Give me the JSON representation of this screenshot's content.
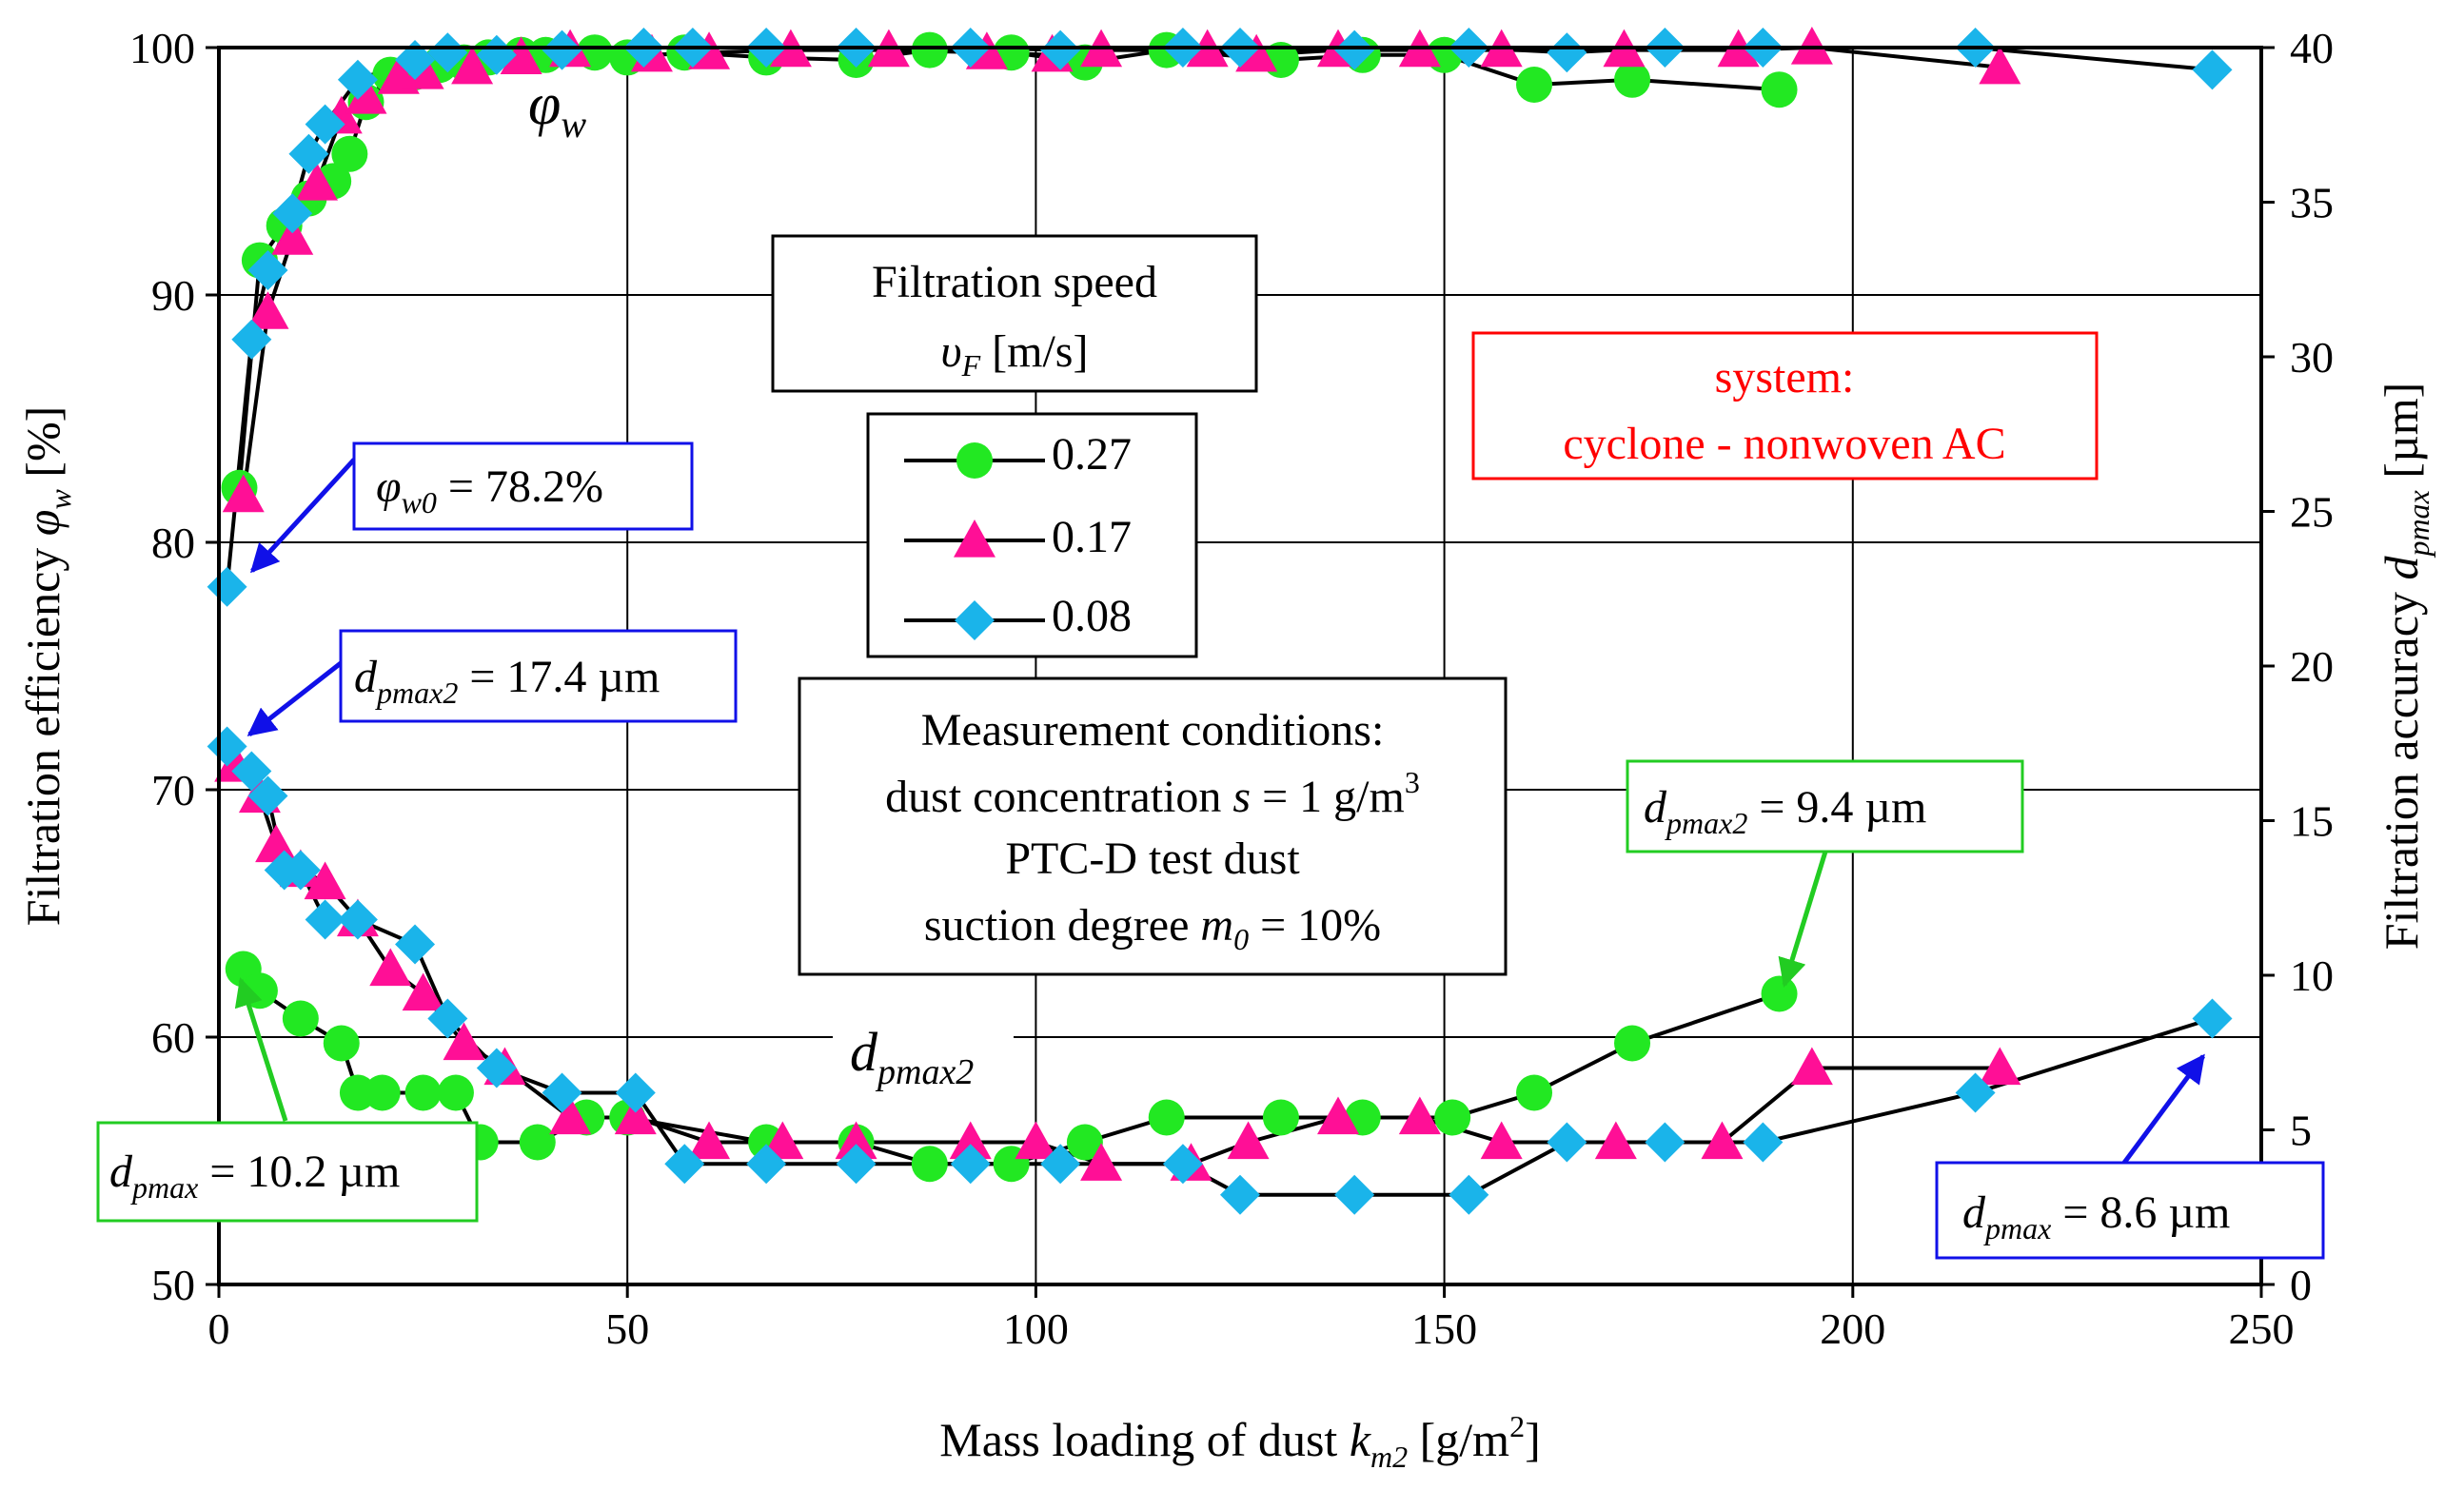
{
  "chart_data": {
    "type": "scatter",
    "xlabel": "Mass loading of dust",
    "xlabel_symbol": "k",
    "xlabel_sub": "m2",
    "xlabel_unit": "[g/m",
    "xlabel_unit_sup": "2",
    "xlabel_unit_end": "]",
    "ylabel_left": "Filtration efficiency",
    "ylabel_left_symbol": "φ",
    "ylabel_left_sub": "w",
    "ylabel_left_unit": "[%]",
    "ylabel_right": "Filtration accuracy",
    "ylabel_right_symbol": "d",
    "ylabel_right_sub": "pmax",
    "ylabel_right_unit": "[µm]",
    "xlim": [
      0,
      250
    ],
    "ylim_left": [
      50,
      100
    ],
    "ylim_right": [
      0,
      40
    ],
    "x_ticks": [
      "0",
      "50",
      "100",
      "150",
      "200",
      "250"
    ],
    "y_left_ticks": [
      "50",
      "60",
      "70",
      "80",
      "90",
      "100"
    ],
    "y_right_ticks": [
      "0",
      "5",
      "10",
      "15",
      "20",
      "25",
      "30",
      "35",
      "40"
    ],
    "grid": true,
    "series": [
      {
        "name": "0.27",
        "marker": "circle",
        "color": "#22e822",
        "axis": "left",
        "curve": "phi_w",
        "points": [
          [
            2.5,
            82.2
          ],
          [
            5,
            91.4
          ],
          [
            8,
            92.8
          ],
          [
            11,
            93.9
          ],
          [
            14,
            94.6
          ],
          [
            16,
            95.7
          ],
          [
            18,
            97.8
          ],
          [
            21,
            98.9
          ],
          [
            24,
            99.0
          ],
          [
            27,
            99.3
          ],
          [
            30,
            99.4
          ],
          [
            33,
            99.6
          ],
          [
            37,
            99.7
          ],
          [
            40,
            99.7
          ],
          [
            46,
            99.8
          ],
          [
            50,
            99.6
          ],
          [
            57,
            99.8
          ],
          [
            67,
            99.6
          ],
          [
            78,
            99.5
          ],
          [
            87,
            99.9
          ],
          [
            97,
            99.8
          ],
          [
            106,
            99.4
          ],
          [
            116,
            99.9
          ],
          [
            130,
            99.5
          ],
          [
            140,
            99.7
          ],
          [
            150,
            99.7
          ],
          [
            161,
            98.5
          ],
          [
            173,
            98.7
          ],
          [
            191,
            98.3
          ]
        ]
      },
      {
        "name": "0.17",
        "marker": "triangle",
        "color": "#ff0f96",
        "axis": "left",
        "curve": "phi_w",
        "points": [
          [
            3,
            81.9
          ],
          [
            6,
            89.3
          ],
          [
            9,
            92.3
          ],
          [
            12,
            94.5
          ],
          [
            15,
            97.2
          ],
          [
            18,
            98.0
          ],
          [
            22,
            98.8
          ],
          [
            25,
            99.0
          ],
          [
            31,
            99.2
          ],
          [
            37,
            99.6
          ],
          [
            43,
            99.9
          ],
          [
            53,
            99.7
          ],
          [
            60,
            99.8
          ],
          [
            70,
            99.9
          ],
          [
            82,
            99.9
          ],
          [
            94,
            99.8
          ],
          [
            102,
            99.7
          ],
          [
            108,
            99.9
          ],
          [
            121,
            99.9
          ],
          [
            127,
            99.7
          ],
          [
            137,
            99.9
          ],
          [
            147,
            99.9
          ],
          [
            157,
            99.9
          ],
          [
            172,
            99.9
          ],
          [
            186,
            99.9
          ],
          [
            195,
            100.0
          ],
          [
            218,
            99.2
          ]
        ]
      },
      {
        "name": "0.08",
        "marker": "diamond",
        "color": "#1ab4ea",
        "axis": "left",
        "curve": "phi_w",
        "points": [
          [
            1,
            78.2
          ],
          [
            4,
            88.2
          ],
          [
            6,
            91.0
          ],
          [
            9,
            93.3
          ],
          [
            11,
            95.7
          ],
          [
            13,
            96.9
          ],
          [
            17,
            98.7
          ],
          [
            24,
            99.5
          ],
          [
            28,
            99.8
          ],
          [
            34,
            99.7
          ],
          [
            42,
            99.9
          ],
          [
            52,
            100.0
          ],
          [
            58,
            100.0
          ],
          [
            67,
            100.0
          ],
          [
            78,
            100.0
          ],
          [
            92,
            100.0
          ],
          [
            103,
            99.9
          ],
          [
            118,
            100.0
          ],
          [
            125,
            100.0
          ],
          [
            139,
            99.9
          ],
          [
            153,
            100.0
          ],
          [
            165,
            99.8
          ],
          [
            177,
            100.0
          ],
          [
            189,
            100.0
          ],
          [
            215,
            100.0
          ],
          [
            244,
            99.1
          ]
        ]
      },
      {
        "name": "0.27",
        "marker": "circle",
        "color": "#22e822",
        "axis": "right",
        "curve": "dpmax",
        "points": [
          [
            3,
            10.2
          ],
          [
            5,
            9.5
          ],
          [
            10,
            8.6
          ],
          [
            15,
            7.8
          ],
          [
            17,
            6.2
          ],
          [
            20,
            6.2
          ],
          [
            25,
            6.2
          ],
          [
            29,
            6.2
          ],
          [
            32,
            4.6
          ],
          [
            39,
            4.6
          ],
          [
            45,
            5.4
          ],
          [
            50,
            5.4
          ],
          [
            67,
            4.6
          ],
          [
            78,
            4.6
          ],
          [
            87,
            3.9
          ],
          [
            97,
            3.9
          ],
          [
            106,
            4.6
          ],
          [
            116,
            5.4
          ],
          [
            130,
            5.4
          ],
          [
            140,
            5.4
          ],
          [
            151,
            5.4
          ],
          [
            161,
            6.2
          ],
          [
            173,
            7.8
          ],
          [
            191,
            9.4
          ]
        ]
      },
      {
        "name": "0.17",
        "marker": "triangle",
        "color": "#ff0f96",
        "axis": "right",
        "curve": "dpmax",
        "points": [
          [
            2,
            16.8
          ],
          [
            5,
            15.8
          ],
          [
            7,
            14.2
          ],
          [
            10,
            13.4
          ],
          [
            13,
            13.0
          ],
          [
            17,
            11.8
          ],
          [
            21,
            10.2
          ],
          [
            25,
            9.4
          ],
          [
            30,
            7.8
          ],
          [
            35,
            7.0
          ],
          [
            43,
            5.4
          ],
          [
            51,
            5.4
          ],
          [
            60,
            4.6
          ],
          [
            69,
            4.6
          ],
          [
            78,
            4.6
          ],
          [
            92,
            4.6
          ],
          [
            100,
            4.6
          ],
          [
            108,
            3.9
          ],
          [
            119,
            3.9
          ],
          [
            126,
            4.6
          ],
          [
            137,
            5.4
          ],
          [
            147,
            5.4
          ],
          [
            157,
            4.6
          ],
          [
            171,
            4.6
          ],
          [
            184,
            4.6
          ],
          [
            195,
            7.0
          ],
          [
            218,
            7.0
          ]
        ]
      },
      {
        "name": "0.08",
        "marker": "diamond",
        "color": "#1ab4ea",
        "axis": "right",
        "curve": "dpmax",
        "points": [
          [
            1,
            17.4
          ],
          [
            4,
            16.6
          ],
          [
            6,
            15.8
          ],
          [
            8,
            13.4
          ],
          [
            10,
            13.4
          ],
          [
            13,
            11.8
          ],
          [
            17,
            11.8
          ],
          [
            24,
            11.0
          ],
          [
            28,
            8.6
          ],
          [
            34,
            7.0
          ],
          [
            42,
            6.2
          ],
          [
            51,
            6.2
          ],
          [
            57,
            3.9
          ],
          [
            67,
            3.9
          ],
          [
            78,
            3.9
          ],
          [
            92,
            3.9
          ],
          [
            103,
            3.9
          ],
          [
            118,
            3.9
          ],
          [
            125,
            2.9
          ],
          [
            139,
            2.9
          ],
          [
            153,
            2.9
          ],
          [
            165,
            4.6
          ],
          [
            177,
            4.6
          ],
          [
            189,
            4.6
          ],
          [
            215,
            6.2
          ],
          [
            244,
            8.6
          ]
        ]
      }
    ],
    "legend": {
      "title_line1": "Filtration speed",
      "title_line2_symbol": "υ",
      "title_line2_sub": "F",
      "title_line2_unit": "[m/s]",
      "entries": [
        "0.27",
        "0.17",
        "0.08"
      ]
    },
    "annotations": {
      "phi_w_label": {
        "symbol": "φ",
        "sub": "w"
      },
      "dpmax2_label": {
        "symbol": "d",
        "sub": "pmax2"
      },
      "system_line1": "system:",
      "system_line2": "cyclone - nonwoven AC",
      "conditions": {
        "line1": "Measurement conditions:",
        "line2": "dust concentration",
        "line2_var": "s",
        "line2_val": "= 1 g/m",
        "line2_sup": "3",
        "line3": "PTC-D test dust",
        "line4": "suction degree",
        "line4_var": "m",
        "line4_sub": "0",
        "line4_val": "= 10%"
      },
      "phi_w0": {
        "symbol": "φ",
        "sub": "w0",
        "value": "= 78.2%"
      },
      "dpmax2_left": {
        "symbol": "d",
        "sub": "pmax2",
        "value": "= 17.4 µm"
      },
      "dpmax2_right": {
        "symbol": "d",
        "sub": "pmax2",
        "value": "= 9.4 µm"
      },
      "dpmax_left": {
        "symbol": "d",
        "sub": "pmax",
        "value": "= 10.2 µm"
      },
      "dpmax_right": {
        "symbol": "d",
        "sub": "pmax",
        "value": "= 8.6 µm"
      }
    },
    "colors": {
      "green": "#22e822",
      "pink": "#ff0f96",
      "blue": "#1ab4ea",
      "red_text": "#ff0000",
      "blue_arrow": "#1010e8",
      "green_arrow": "#22cc22"
    }
  }
}
